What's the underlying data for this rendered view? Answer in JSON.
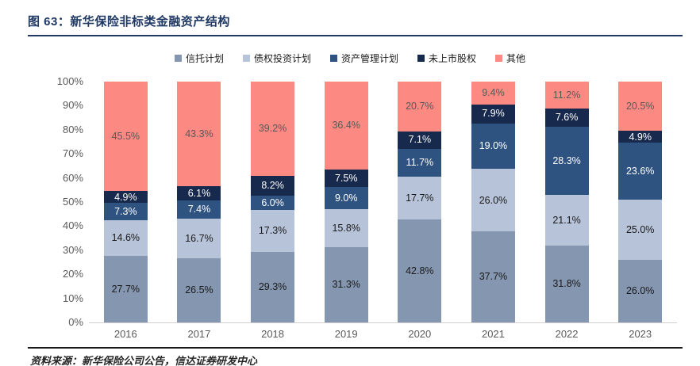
{
  "figure": {
    "title": "图 63：新华保险非标类金融资产结构",
    "source": "资料来源：新华保险公司公告，信达证券研发中心"
  },
  "chart_data": {
    "type": "bar",
    "variant": "stacked-100-percent-column",
    "title": "新华保险非标类金融资产结构",
    "categories": [
      "2016",
      "2017",
      "2018",
      "2019",
      "2020",
      "2021",
      "2022",
      "2023"
    ],
    "series": [
      {
        "name": "信托计划",
        "color": "#8496B0",
        "label_color": "#1a1a1a",
        "values": [
          27.7,
          26.5,
          29.3,
          31.3,
          42.8,
          37.7,
          31.8,
          26.0
        ]
      },
      {
        "name": "债权投资计划",
        "color": "#B7C3D9",
        "label_color": "#1a1a1a",
        "values": [
          14.6,
          16.7,
          17.3,
          15.8,
          17.7,
          26.0,
          21.1,
          25.0
        ]
      },
      {
        "name": "资产管理计划",
        "color": "#2F5380",
        "label_color": "#ffffff",
        "values": [
          7.3,
          7.4,
          6.0,
          9.0,
          11.7,
          19.0,
          28.3,
          23.6
        ]
      },
      {
        "name": "未上市股权",
        "color": "#17294D",
        "label_color": "#ffffff",
        "values": [
          4.9,
          6.1,
          8.2,
          7.5,
          7.1,
          7.9,
          7.6,
          4.9
        ]
      },
      {
        "name": "其他",
        "color": "#FC8982",
        "label_color": "#595959",
        "values": [
          45.5,
          43.3,
          39.2,
          36.4,
          20.7,
          9.4,
          11.2,
          20.5
        ]
      }
    ],
    "y_ticks": [
      "100%",
      "90%",
      "80%",
      "70%",
      "60%",
      "50%",
      "40%",
      "30%",
      "20%",
      "10%",
      "0%"
    ],
    "ylim": [
      0,
      100
    ],
    "value_suffix": "%",
    "value_decimals": 1,
    "legend_position": "top",
    "grid": false,
    "accent_colors": {
      "title_navy": "#1F3864",
      "axis_gray": "#595959",
      "baseline_gray": "#d0cece"
    }
  }
}
